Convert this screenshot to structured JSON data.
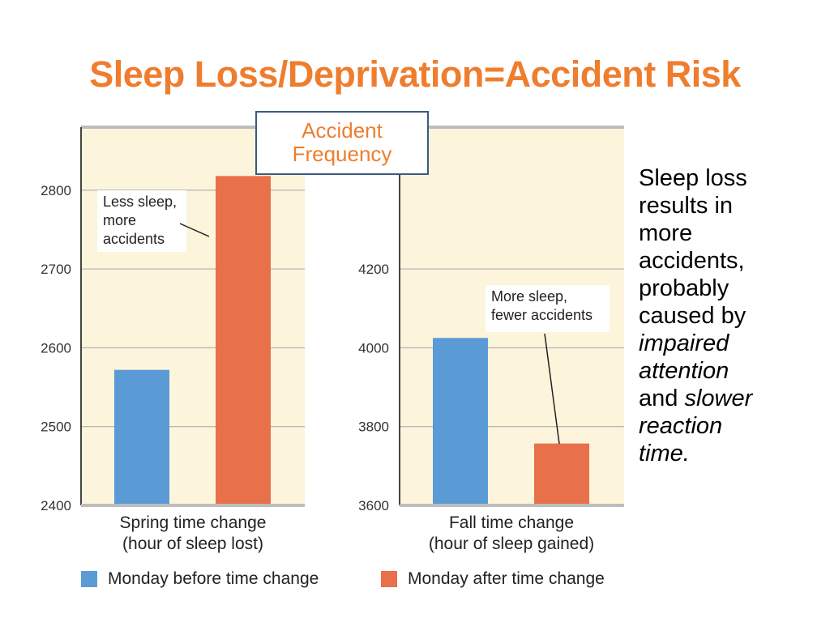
{
  "slide": {
    "title": "Sleep Loss/Deprivation=Accident Risk",
    "ylabel_box": [
      "Accident",
      "Frequency"
    ],
    "side_text": [
      {
        "text": "Sleep loss",
        "italic": false
      },
      {
        "text": "results in",
        "italic": false
      },
      {
        "text": "more",
        "italic": false
      },
      {
        "text": "accidents,",
        "italic": false
      },
      {
        "text": "probably",
        "italic": false
      },
      {
        "text": "caused by",
        "italic": false
      },
      {
        "text": "impaired",
        "italic": true
      },
      {
        "text": "attention",
        "italic": true
      },
      {
        "text": "and ",
        "italic": false,
        "append": "slower",
        "append_italic": true
      },
      {
        "text": "reaction",
        "italic": true
      },
      {
        "text": "time.",
        "italic": true
      }
    ]
  },
  "legend": [
    {
      "label": "Monday before time change",
      "color": "#5b9bd5"
    },
    {
      "label": "Monday after time change",
      "color": "#e8704a"
    }
  ],
  "colors": {
    "background_panel": "#fdf4dc",
    "grid": "#b8b8b8",
    "before": "#5b9bd5",
    "after": "#e8704a",
    "title": "#ef7d2e"
  },
  "chart_data": [
    {
      "type": "bar",
      "xlabel": [
        "Spring time change",
        "(hour of sleep lost)"
      ],
      "ylim": [
        2400,
        2880
      ],
      "yticks": [
        2400,
        2500,
        2600,
        2700,
        2800
      ],
      "series": [
        {
          "name": "Monday before time change",
          "values": [
            2572
          ]
        },
        {
          "name": "Monday after time change",
          "values": [
            2818
          ]
        }
      ],
      "annotation": [
        "Less sleep,",
        "more",
        "accidents"
      ]
    },
    {
      "type": "bar",
      "xlabel": [
        "Fall time change",
        "(hour of sleep gained)"
      ],
      "ylim": [
        3600,
        4560
      ],
      "yticks": [
        3600,
        3800,
        4000,
        4200
      ],
      "series": [
        {
          "name": "Monday before time change",
          "values": [
            4025
          ]
        },
        {
          "name": "Monday after time change",
          "values": [
            3757
          ]
        }
      ],
      "annotation": [
        "More sleep,",
        "fewer accidents"
      ]
    }
  ]
}
